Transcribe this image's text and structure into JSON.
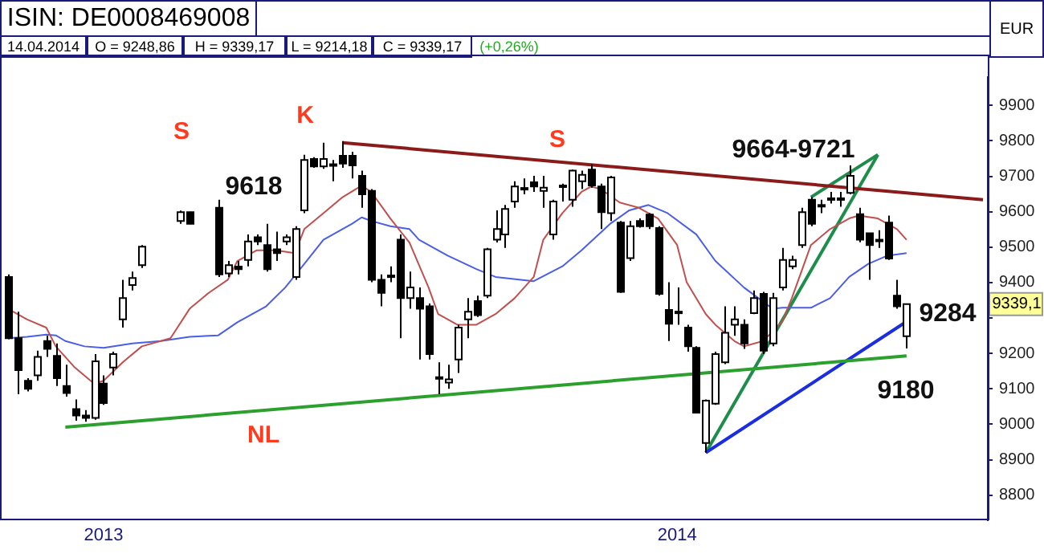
{
  "chart_data": {
    "type": "candlestick",
    "title": "ISIN: DE0008469008",
    "ylabel": "EUR",
    "categories": [
      null,
      null,
      null,
      null,
      null,
      null,
      null,
      null,
      null,
      null,
      "2013",
      null,
      null,
      null,
      null,
      null,
      null,
      null,
      null,
      null,
      null,
      null,
      null,
      null,
      null,
      null,
      null,
      null,
      null,
      null,
      null,
      null,
      null,
      null,
      null,
      null,
      null,
      null,
      null,
      null,
      null,
      null,
      null,
      null,
      null,
      null,
      null,
      null,
      null,
      null,
      null,
      null,
      null,
      null,
      null,
      null,
      null,
      null,
      null,
      null,
      null,
      null,
      null,
      null,
      null,
      null,
      null,
      null,
      null,
      null,
      "2014",
      null,
      null,
      null,
      null,
      null,
      null,
      null,
      null,
      null,
      null,
      null,
      null,
      null,
      null,
      null,
      null,
      null,
      null,
      null,
      null,
      null,
      null,
      null,
      null,
      null,
      null,
      null,
      null,
      null,
      null,
      null,
      null
    ],
    "ohlc": [
      [
        9416,
        9423,
        9240,
        9243
      ],
      [
        9243,
        9318,
        9085,
        9153
      ],
      [
        9123,
        9130,
        9093,
        9100
      ],
      [
        9138,
        9208,
        9123,
        9190
      ],
      [
        9235,
        9250,
        9190,
        9213
      ],
      [
        9193,
        9228,
        9108,
        9130
      ],
      [
        9108,
        9168,
        9078,
        9088
      ],
      [
        9043,
        9070,
        9010,
        9025
      ],
      [
        9025,
        9040,
        9007,
        9018
      ],
      [
        9018,
        9198,
        9013,
        9178
      ],
      [
        9115,
        9138,
        9055,
        9060
      ],
      [
        9160,
        9205,
        9138,
        9198
      ],
      [
        9296,
        9408,
        9273,
        9356
      ],
      [
        9393,
        9431,
        9378,
        9413
      ],
      [
        9449,
        9506,
        9441,
        9501
      ],
      null,
      null,
      null,
      [
        9574,
        9603,
        9566,
        9599
      ],
      [
        9599,
        9600,
        9565,
        9566
      ],
      null,
      null,
      [
        9611,
        9634,
        9416,
        9423
      ],
      [
        9426,
        9461,
        9416,
        9449
      ],
      [
        9445,
        9461,
        9423,
        9438
      ],
      [
        9464,
        9536,
        9446,
        9516
      ],
      [
        9528,
        9536,
        9506,
        9516
      ],
      [
        9506,
        9566,
        9431,
        9438
      ],
      [
        9494,
        9544,
        9461,
        9483
      ],
      [
        9516,
        9536,
        9506,
        9528
      ],
      [
        9416,
        9559,
        9408,
        9551
      ],
      [
        9604,
        9761,
        9596,
        9746
      ],
      [
        9749,
        9754,
        9724,
        9728
      ],
      [
        9728,
        9795,
        9721,
        9749
      ],
      [
        9731,
        9746,
        9686,
        9734
      ],
      [
        9758,
        9799,
        9724,
        9736
      ],
      [
        9758,
        9769,
        9694,
        9731
      ],
      [
        9701,
        9716,
        9611,
        9649
      ],
      [
        9659,
        9664,
        9401,
        9408
      ],
      [
        9408,
        9423,
        9333,
        9371
      ],
      [
        9420,
        9446,
        9401,
        9420
      ],
      [
        9521,
        9536,
        9243,
        9356
      ],
      [
        9356,
        9431,
        9326,
        9386
      ],
      [
        9356,
        9386,
        9183,
        9326
      ],
      [
        9333,
        9341,
        9183,
        9198
      ],
      [
        9133,
        9175,
        9085,
        9133
      ],
      [
        9118,
        9168,
        9100,
        9127
      ],
      [
        9183,
        9281,
        9145,
        9273
      ],
      [
        9296,
        9356,
        9243,
        9318
      ],
      [
        9348,
        9363,
        9303,
        9308
      ],
      [
        9363,
        9498,
        9356,
        9494
      ],
      [
        9521,
        9604,
        9513,
        9551
      ],
      [
        9536,
        9619,
        9498,
        9608
      ],
      [
        9629,
        9686,
        9611,
        9671
      ],
      [
        9667,
        9694,
        9649,
        9667
      ],
      [
        9683,
        9701,
        9656,
        9671
      ],
      [
        9659,
        9701,
        9611,
        9668
      ],
      [
        9536,
        9634,
        9521,
        9629
      ],
      [
        9674,
        9679,
        9629,
        9674
      ],
      [
        9634,
        9719,
        9614,
        9716
      ],
      [
        9686,
        9716,
        9664,
        9704
      ],
      [
        9719,
        9734,
        9668,
        9674
      ],
      [
        9671,
        9679,
        9551,
        9599
      ],
      [
        9596,
        9701,
        9574,
        9697
      ],
      [
        9569,
        9574,
        9371,
        9374
      ],
      [
        9469,
        9574,
        9461,
        9559
      ],
      [
        9574,
        9581,
        9555,
        9559
      ],
      [
        9592,
        9596,
        9551,
        9559
      ],
      [
        9554,
        9559,
        9363,
        9368
      ],
      [
        9323,
        9401,
        9235,
        9284
      ],
      [
        9318,
        9386,
        9281,
        9318
      ],
      [
        9273,
        9281,
        9205,
        9220
      ],
      [
        9216,
        9220,
        9033,
        9033
      ],
      [
        8947,
        9070,
        8920,
        9067
      ],
      [
        9058,
        9205,
        9055,
        9198
      ],
      [
        9175,
        9333,
        9170,
        9258
      ],
      [
        9281,
        9333,
        9250,
        9296
      ],
      [
        9281,
        9296,
        9213,
        9228
      ],
      [
        9314,
        9378,
        9311,
        9356
      ],
      [
        9368,
        9374,
        9198,
        9208
      ],
      [
        9228,
        9371,
        9220,
        9356
      ],
      [
        9386,
        9498,
        9378,
        9464
      ],
      [
        9446,
        9476,
        9438,
        9464
      ],
      [
        9506,
        9611,
        9498,
        9599
      ],
      [
        9634,
        9641,
        9559,
        9566
      ],
      [
        9619,
        9634,
        9596,
        9619
      ],
      [
        9638,
        9656,
        9623,
        9638
      ],
      [
        9638,
        9656,
        9614,
        9638
      ],
      [
        9653,
        9731,
        9649,
        9701
      ],
      [
        9593,
        9611,
        9514,
        9521
      ],
      [
        9539,
        9539,
        9408,
        9506
      ],
      [
        9521,
        9548,
        9498,
        9521
      ],
      [
        9569,
        9589,
        9464,
        9468
      ],
      [
        9363,
        9408,
        9326,
        9333
      ],
      [
        9248.86,
        9339.17,
        9214.18,
        9339.17
      ],
      null,
      null,
      null,
      null,
      null,
      null,
      null,
      null
    ],
    "series": [
      {
        "type": "line",
        "color": "#c0504d",
        "values": [
          9326,
          null,
          9296,
          null,
          9273,
          9220,
          null,
          9160,
          null,
          9115,
          9123,
          null,
          9175,
          null,
          9220,
          null,
          null,
          9243,
          null,
          9326,
          null,
          9371,
          null,
          9408,
          9461,
          null,
          9491,
          null,
          9491,
          null,
          9483,
          9551,
          null,
          9596,
          null,
          9641,
          null,
          9674,
          9656,
          null,
          9581,
          null,
          9513,
          null,
          9386,
          9311,
          null,
          9281,
          null,
          9281,
          null,
          9311,
          null,
          9356,
          null,
          9416,
          9521,
          null,
          9596,
          null,
          9656,
          9671,
          9664,
          null,
          9626,
          null,
          9611,
          null,
          9581,
          null,
          9506,
          9401,
          null,
          9311,
          9281,
          null,
          9235,
          9220,
          null,
          9235,
          null,
          9290,
          9356,
          null,
          9506,
          null,
          9551,
          null,
          9581,
          9589,
          null,
          9581,
          null,
          9551,
          9521,
          null,
          null,
          null,
          null,
          null,
          null,
          null,
          null
        ]
      },
      {
        "type": "line",
        "color": "#4a5ee8",
        "values": [
          9243,
          null,
          9247,
          null,
          9253,
          9251,
          9235,
          null,
          9220,
          null,
          9216,
          null,
          null,
          9228,
          null,
          null,
          9235,
          null,
          null,
          9247,
          null,
          null,
          9251,
          null,
          9288,
          null,
          null,
          9333,
          null,
          9386,
          null,
          9453,
          null,
          9521,
          null,
          null,
          9566,
          9584,
          9574,
          null,
          9559,
          null,
          9551,
          9521,
          null,
          null,
          9476,
          null,
          null,
          9438,
          null,
          9416,
          null,
          null,
          null,
          9404,
          null,
          null,
          9446,
          null,
          9491,
          null,
          null,
          9566,
          null,
          9604,
          null,
          9619,
          null,
          9596,
          null,
          null,
          9536,
          null,
          9461,
          null,
          null,
          9386,
          null,
          null,
          9326,
          9329,
          null,
          null,
          9329,
          null,
          9356,
          null,
          9416,
          null,
          9453,
          null,
          9476,
          null,
          9483,
          null,
          null,
          null,
          null,
          null,
          null,
          null,
          null
        ]
      },
      {
        "type": "line",
        "color": "#8b1a1a",
        "values": [
          null,
          null,
          null,
          null,
          null,
          null,
          null,
          null,
          null,
          null,
          null,
          null,
          null,
          null,
          null,
          null,
          null,
          null,
          null,
          null,
          null,
          null,
          null,
          null,
          null,
          null,
          null,
          null,
          null,
          null,
          null,
          null,
          null,
          null,
          null,
          9795,
          null,
          null,
          null,
          null,
          null,
          null,
          null,
          null,
          null,
          null,
          null,
          null,
          null,
          null,
          null,
          null,
          null,
          null,
          null,
          null,
          null,
          null,
          null,
          null,
          null,
          null,
          null,
          null,
          null,
          null,
          null,
          null,
          null,
          null,
          null,
          null,
          null,
          null,
          null,
          null,
          null,
          null,
          null,
          null,
          null,
          null,
          null,
          null,
          null,
          null,
          null,
          null,
          null,
          null,
          null,
          null,
          null,
          null,
          null,
          null,
          null,
          null,
          null,
          null,
          null,
          null,
          9634
        ]
      },
      {
        "type": "line",
        "color": "#2ca02c",
        "values": [
          null,
          null,
          null,
          null,
          null,
          null,
          8992,
          null,
          null,
          null,
          null,
          null,
          null,
          null,
          null,
          null,
          null,
          null,
          null,
          null,
          null,
          null,
          null,
          null,
          null,
          null,
          null,
          null,
          null,
          null,
          null,
          null,
          null,
          null,
          null,
          null,
          null,
          null,
          null,
          null,
          null,
          null,
          null,
          null,
          null,
          null,
          null,
          null,
          null,
          null,
          null,
          null,
          null,
          null,
          null,
          null,
          null,
          null,
          null,
          null,
          null,
          null,
          null,
          null,
          null,
          null,
          null,
          null,
          null,
          null,
          null,
          null,
          null,
          null,
          null,
          null,
          null,
          null,
          null,
          null,
          null,
          null,
          null,
          null,
          null,
          null,
          null,
          null,
          null,
          null,
          null,
          null,
          null,
          null,
          9193,
          null,
          null,
          null,
          null,
          null,
          null,
          null,
          null
        ]
      },
      {
        "type": "line",
        "color": "#1a2ee0",
        "values": [
          null,
          null,
          null,
          null,
          null,
          null,
          null,
          null,
          null,
          null,
          null,
          null,
          null,
          null,
          null,
          null,
          null,
          null,
          null,
          null,
          null,
          null,
          null,
          null,
          null,
          null,
          null,
          null,
          null,
          null,
          null,
          null,
          null,
          null,
          null,
          null,
          null,
          null,
          null,
          null,
          null,
          null,
          null,
          null,
          null,
          null,
          null,
          null,
          null,
          null,
          null,
          null,
          null,
          null,
          null,
          null,
          null,
          null,
          null,
          null,
          null,
          null,
          null,
          null,
          null,
          null,
          null,
          null,
          null,
          null,
          null,
          null,
          null,
          8920,
          null,
          null,
          null,
          null,
          null,
          null,
          null,
          null,
          null,
          null,
          null,
          null,
          null,
          null,
          null,
          null,
          null,
          null,
          null,
          null,
          9290,
          null,
          null,
          null,
          null,
          null,
          null,
          null,
          null
        ]
      },
      {
        "type": "line",
        "color": "#1e8c4a",
        "values": [
          null,
          null,
          null,
          null,
          null,
          null,
          null,
          null,
          null,
          null,
          null,
          null,
          null,
          null,
          null,
          null,
          null,
          null,
          null,
          null,
          null,
          null,
          null,
          null,
          null,
          null,
          null,
          null,
          null,
          null,
          null,
          null,
          null,
          null,
          null,
          null,
          null,
          null,
          null,
          null,
          null,
          null,
          null,
          null,
          null,
          null,
          null,
          null,
          null,
          null,
          null,
          null,
          null,
          null,
          null,
          null,
          null,
          null,
          null,
          null,
          null,
          null,
          null,
          null,
          null,
          null,
          null,
          null,
          null,
          null,
          null,
          null,
          null,
          8920,
          null,
          null,
          null,
          null,
          null,
          null,
          null,
          null,
          null,
          null,
          null,
          null,
          null,
          null,
          null,
          null,
          null,
          9761,
          null,
          null,
          null,
          null,
          null,
          null,
          null,
          null,
          null,
          null,
          null
        ]
      },
      {
        "type": "line",
        "color": "#1e8c4a",
        "values": [
          null,
          null,
          null,
          null,
          null,
          null,
          null,
          null,
          null,
          null,
          null,
          null,
          null,
          null,
          null,
          null,
          null,
          null,
          null,
          null,
          null,
          null,
          null,
          null,
          null,
          null,
          null,
          null,
          null,
          null,
          null,
          null,
          null,
          null,
          null,
          null,
          null,
          null,
          null,
          null,
          null,
          null,
          null,
          null,
          null,
          null,
          null,
          null,
          null,
          null,
          null,
          null,
          null,
          null,
          null,
          null,
          null,
          null,
          null,
          null,
          null,
          null,
          null,
          null,
          null,
          null,
          null,
          null,
          null,
          null,
          null,
          null,
          null,
          null,
          null,
          null,
          null,
          null,
          null,
          null,
          null,
          null,
          null,
          null,
          9641,
          null,
          null,
          null,
          null,
          null,
          null,
          9761,
          null,
          null,
          null,
          null,
          null,
          null,
          null,
          null,
          null,
          null,
          null
        ]
      }
    ],
    "ylim": [
      8730,
      9980
    ],
    "yticks": [
      8800,
      8900,
      9000,
      9100,
      9200,
      {
        "value": 9300,
        "label": null
      },
      9400,
      9500,
      9600,
      9700,
      9800,
      9900
    ],
    "grid": false,
    "legend": false,
    "marker": "none",
    "annotations": [
      "14.04.2014",
      "O = 9248,86",
      "H = 9339,17",
      "L = 9214,18",
      "C = 9339,17",
      "(+0,26%)",
      "K",
      "S",
      "S",
      "9618",
      "NL",
      "9664-9721",
      "9284",
      "9180",
      {
        "text": "9339,1",
        "y": 9339.17
      }
    ]
  }
}
